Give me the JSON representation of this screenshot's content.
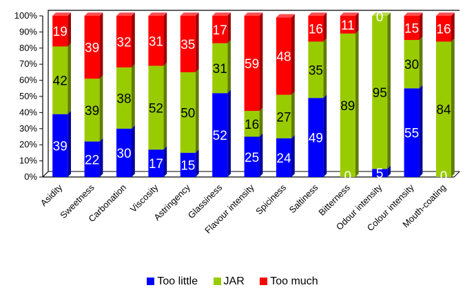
{
  "chart_data": {
    "type": "bar",
    "stacked": true,
    "percent": true,
    "three_d": true,
    "categories": [
      "Asidity",
      "Sweetness",
      "Carbonation",
      "Viscosity",
      "Astringency",
      "Glassiness",
      "Flavour intensity",
      "Spiciness",
      "Saltiness",
      "Bitterness",
      "Odour intensity",
      "Colour intensity",
      "Mouth-coating"
    ],
    "series": [
      {
        "name": "Too little",
        "color": "#0000FF",
        "values": [
          39,
          22,
          30,
          17,
          15,
          52,
          25,
          24,
          49,
          0,
          5,
          55,
          0
        ]
      },
      {
        "name": "JAR",
        "color": "#99CC00",
        "values": [
          42,
          39,
          38,
          52,
          50,
          31,
          16,
          27,
          35,
          89,
          95,
          30,
          84
        ]
      },
      {
        "name": "Too much",
        "color": "#FF0000",
        "values": [
          19,
          39,
          32,
          31,
          35,
          17,
          59,
          48,
          16,
          11,
          0,
          15,
          16
        ]
      }
    ],
    "yticks": [
      "0%",
      "10%",
      "20%",
      "30%",
      "40%",
      "50%",
      "60%",
      "70%",
      "80%",
      "90%",
      "100%"
    ],
    "ylim": [
      0,
      100
    ],
    "legend_position": "bottom"
  }
}
